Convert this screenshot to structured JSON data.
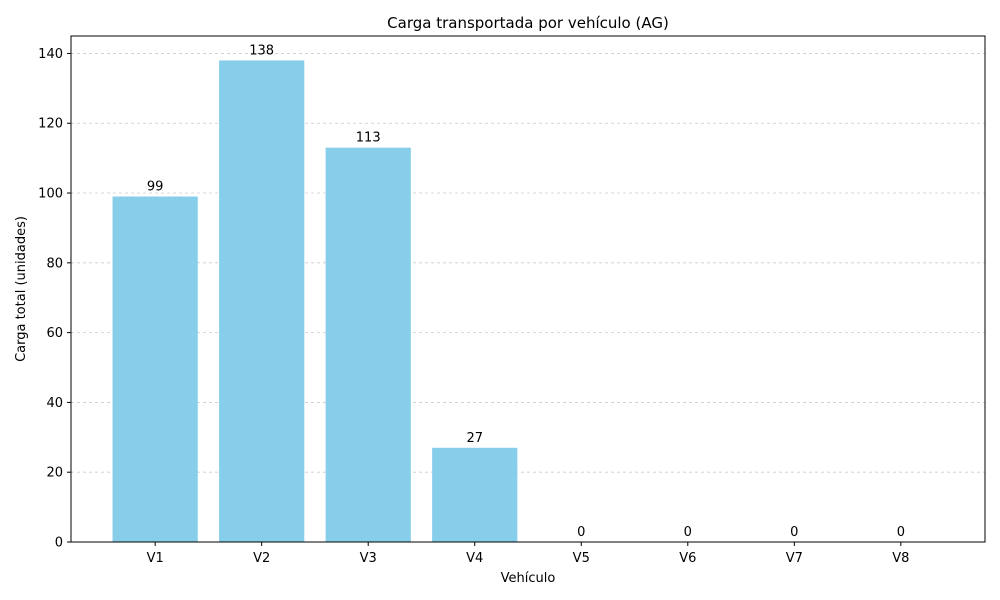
{
  "chart_data": {
    "type": "bar",
    "title": "Carga transportada por vehículo (AG)",
    "xlabel": "Vehículo",
    "ylabel": "Carga total (unidades)",
    "categories": [
      "V1",
      "V2",
      "V3",
      "V4",
      "V5",
      "V6",
      "V7",
      "V8"
    ],
    "values": [
      99,
      138,
      113,
      27,
      0,
      0,
      0,
      0
    ],
    "data_labels": [
      "99",
      "138",
      "113",
      "27",
      "0",
      "0",
      "0",
      "0"
    ],
    "ylim": [
      0,
      145
    ],
    "yticks": [
      0,
      20,
      40,
      60,
      80,
      100,
      120,
      140
    ],
    "ytick_labels": [
      "0",
      "20",
      "40",
      "60",
      "80",
      "100",
      "120",
      "140"
    ],
    "grid": "y-dashed",
    "bar_color": "#87ceeb",
    "grid_color": "#cccccc"
  }
}
